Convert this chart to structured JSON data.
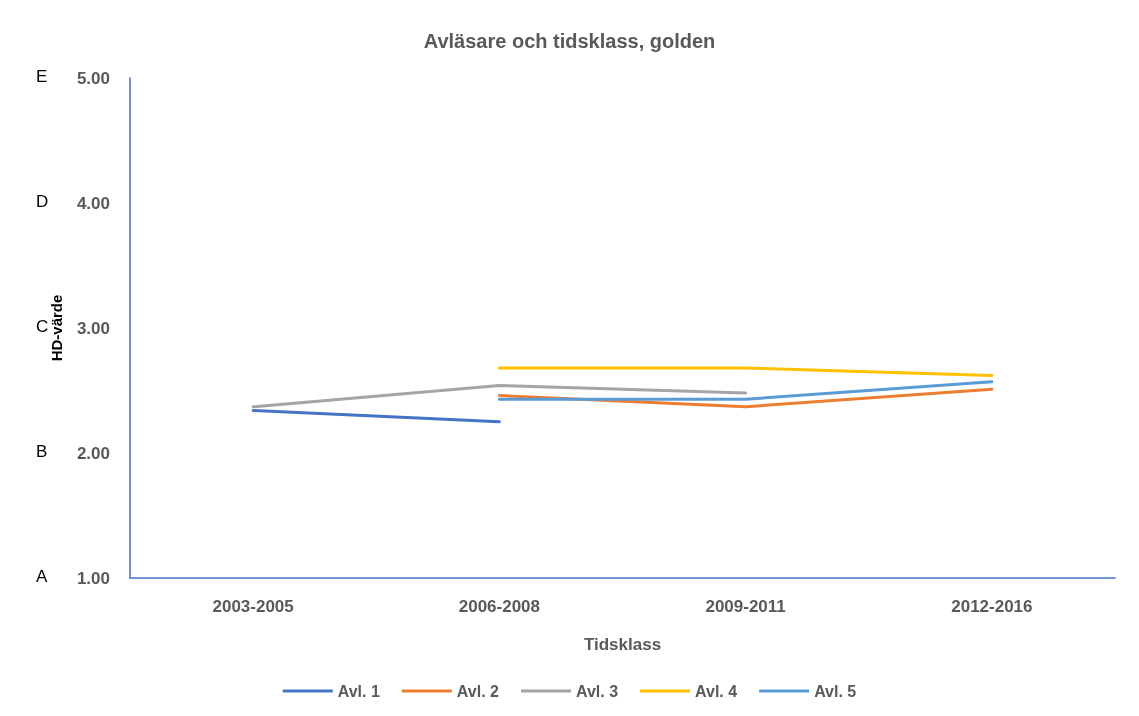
{
  "chart_data": {
    "type": "line",
    "title": "Avläsare och tidsklass, golden",
    "xlabel": "Tidsklass",
    "ylabel": "HD-värde",
    "categories": [
      "2003-2005",
      "2006-2008",
      "2009-2011",
      "2012-2016"
    ],
    "series": [
      {
        "name": "Avl. 1",
        "color": "#4472c4",
        "values": [
          2.34,
          2.25,
          null,
          null
        ]
      },
      {
        "name": "Avl. 2",
        "color": "#ed7d31",
        "values": [
          null,
          2.46,
          2.37,
          2.51
        ]
      },
      {
        "name": "Avl. 3",
        "color": "#a5a5a5",
        "values": [
          2.37,
          2.54,
          2.48,
          null
        ]
      },
      {
        "name": "Avl. 4",
        "color": "#ffc000",
        "values": [
          null,
          2.68,
          2.68,
          2.62
        ]
      },
      {
        "name": "Avl. 5",
        "color": "#5b9bd5",
        "values": [
          null,
          2.43,
          2.43,
          2.57
        ]
      }
    ],
    "ylim": [
      1,
      5
    ],
    "yticks": [
      {
        "value": 1,
        "label": "1.00"
      },
      {
        "value": 2,
        "label": "2.00"
      },
      {
        "value": 3,
        "label": "3.00"
      },
      {
        "value": 4,
        "label": "4.00"
      },
      {
        "value": 5,
        "label": "5.00"
      }
    ],
    "annotations": [
      "A",
      "B",
      "C",
      "D",
      "E"
    ],
    "grid": false,
    "legend": "bottom",
    "marker": "none",
    "line_style": "solid"
  }
}
